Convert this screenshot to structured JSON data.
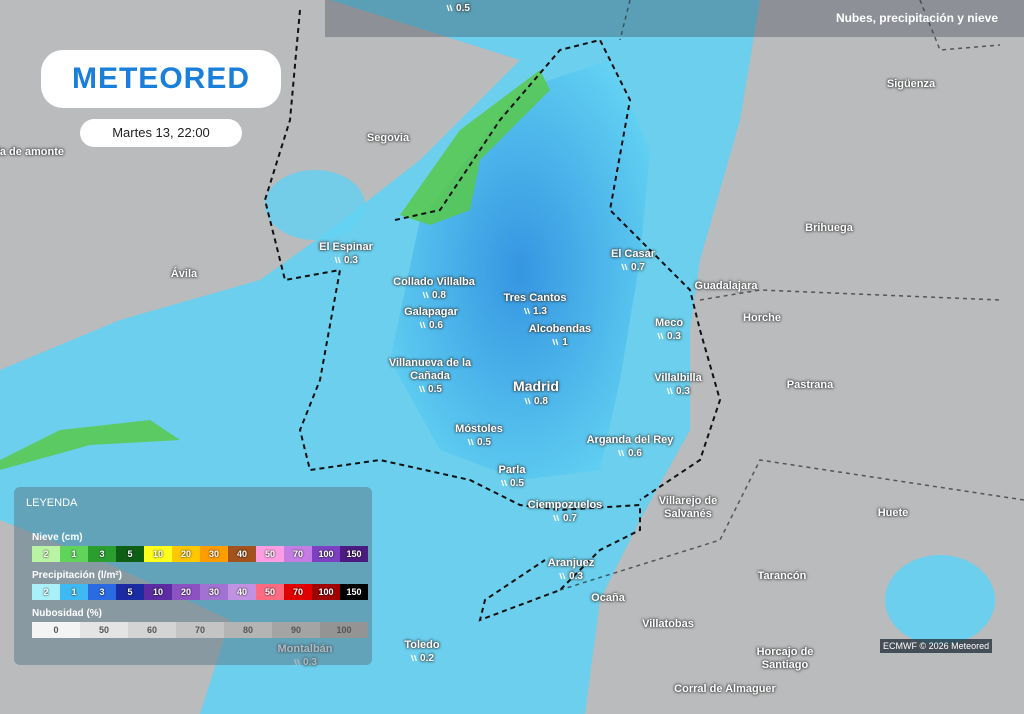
{
  "header": {
    "title": "Nubes, precipitación y nieve",
    "logo": "METEORED",
    "date": "Martes 13, 22:00"
  },
  "places": [
    {
      "value": 0.5
    },
    {
      "name": "Segovia"
    },
    {
      "name": "randa de amonte"
    },
    {
      "name": "El Espinar",
      "value": 0.3
    },
    {
      "name": "Ávila"
    },
    {
      "name": "Collado Villalba",
      "value": 0.8
    },
    {
      "name": "Galapagar",
      "value": 0.6
    },
    {
      "name": "Tres Cantos",
      "value": 1.3
    },
    {
      "name": "Alcobendas",
      "value": 1
    },
    {
      "name": "El Casar",
      "value": 0.7
    },
    {
      "name": "Guadalajara"
    },
    {
      "name": "Meco",
      "value": 0.3
    },
    {
      "name": "Villalbilla",
      "value": 0.3
    },
    {
      "name": "Madrid",
      "value": 0.8
    },
    {
      "name": "Villanueva de la Cañada",
      "value": 0.5
    },
    {
      "name": "Móstoles",
      "value": 0.5
    },
    {
      "name": "Arganda del Rey",
      "value": 0.6
    },
    {
      "name": "Parla",
      "value": 0.5
    },
    {
      "name": "Ciempozuelos",
      "value": 0.7
    },
    {
      "name": "Villarejo de Salvanés"
    },
    {
      "name": "Aranjuez",
      "value": 0.3
    },
    {
      "name": "Ocaña"
    },
    {
      "name": "Villatobas"
    },
    {
      "name": "Toledo",
      "value": 0.2
    },
    {
      "name": "Montalbán",
      "value": 0.3
    },
    {
      "name": "Horcajo de Santiago"
    },
    {
      "name": "Corral de Almaguer"
    },
    {
      "name": "Tarancón"
    },
    {
      "name": "Huete"
    },
    {
      "name": "Pastrana"
    },
    {
      "name": "Horche"
    },
    {
      "name": "Brihuega"
    },
    {
      "name": "Sigüenza"
    }
  ],
  "legend": {
    "title": "LEYENDA",
    "sections": [
      {
        "title": "Nieve (cm)",
        "items": [
          {
            "label": 2,
            "color": "#b9f3a4"
          },
          {
            "label": 1,
            "color": "#5fd35a"
          },
          {
            "label": 3,
            "color": "#2b9e30"
          },
          {
            "label": 5,
            "color": "#0f5e16"
          },
          {
            "label": 10,
            "color": "#ffff1e"
          },
          {
            "label": 20,
            "color": "#ffc800"
          },
          {
            "label": 30,
            "color": "#ff9c00"
          },
          {
            "label": 40,
            "color": "#a2521c"
          },
          {
            "label": 50,
            "color": "#ff9de2"
          },
          {
            "label": 70,
            "color": "#c47de2"
          },
          {
            "label": 100,
            "color": "#7c41c2"
          },
          {
            "label": 150,
            "color": "#4b1b82"
          }
        ]
      },
      {
        "title": "Precipitación (l/m²)",
        "items": [
          {
            "label": 2,
            "color": "#aaf0fa"
          },
          {
            "label": 1,
            "color": "#3eb9f2"
          },
          {
            "label": 3,
            "color": "#2b6be2"
          },
          {
            "label": 5,
            "color": "#1b2ba2"
          },
          {
            "label": 10,
            "color": "#5c2ca2"
          },
          {
            "label": 20,
            "color": "#8c52c2"
          },
          {
            "label": 30,
            "color": "#a272d2"
          },
          {
            "label": 40,
            "color": "#c292e2"
          },
          {
            "label": 50,
            "color": "#ff6c82"
          },
          {
            "label": 70,
            "color": "#e00000"
          },
          {
            "label": 100,
            "color": "#a00000"
          },
          {
            "label": 150,
            "color": "#000000"
          }
        ]
      },
      {
        "title": "Nubosidad (%)",
        "items": [
          {
            "label": 0,
            "color": "#f4f4f4"
          },
          {
            "label": 50,
            "color": "#e4e4e4"
          },
          {
            "label": 60,
            "color": "#d4d4d4"
          },
          {
            "label": 70,
            "color": "#c4c4c4"
          },
          {
            "label": 80,
            "color": "#b4b4b4"
          },
          {
            "label": 90,
            "color": "#a4a4a4"
          },
          {
            "label": 100,
            "color": "#949494"
          }
        ]
      }
    ]
  },
  "credit": "ECMWF © 2026 Meteored"
}
